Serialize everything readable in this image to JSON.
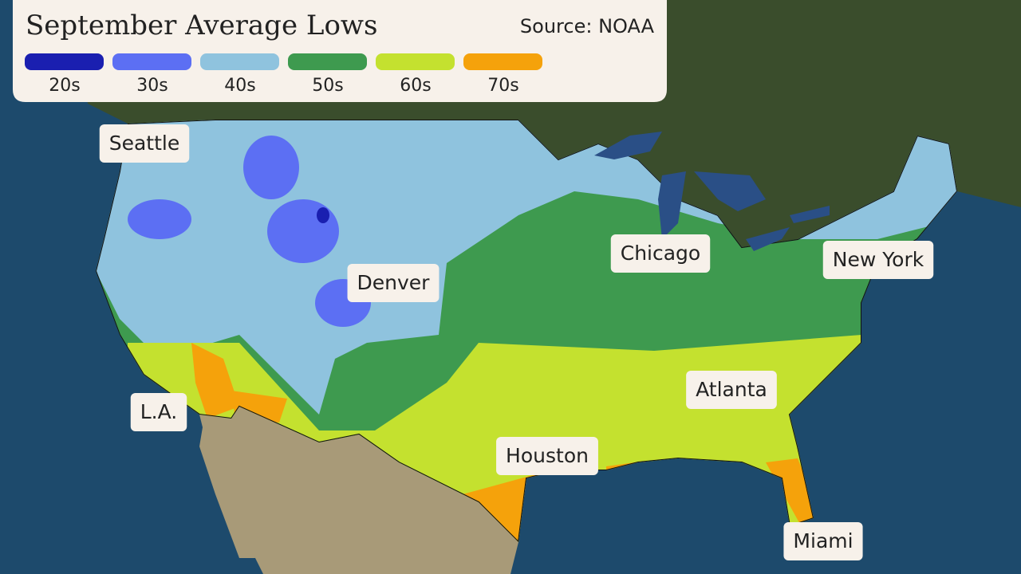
{
  "header": {
    "title": "September Average Lows",
    "source": "Source: NOAA"
  },
  "legend": {
    "items": [
      {
        "label": "20s",
        "color": "#1a1fb0"
      },
      {
        "label": "30s",
        "color": "#5c6ff3"
      },
      {
        "label": "40s",
        "color": "#8fc3de"
      },
      {
        "label": "50s",
        "color": "#3e9a4f"
      },
      {
        "label": "60s",
        "color": "#c4e12f"
      },
      {
        "label": "70s",
        "color": "#f5a20b"
      }
    ]
  },
  "cities": [
    {
      "label": "Seattle"
    },
    {
      "label": "Denver"
    },
    {
      "label": "Chicago"
    },
    {
      "label": "New York"
    },
    {
      "label": "L.A."
    },
    {
      "label": "Houston"
    },
    {
      "label": "Atlanta"
    },
    {
      "label": "Miami"
    }
  ]
}
